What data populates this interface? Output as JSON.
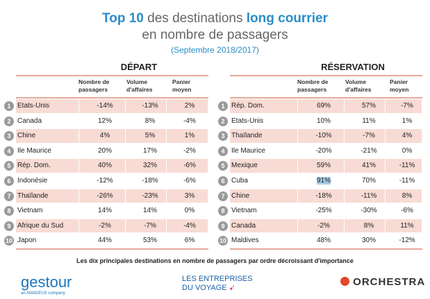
{
  "title": {
    "line1_part1": "Top 10",
    "line1_part2": " des destinations ",
    "line1_part3": "long courrier",
    "line2": "en nombre de passagers",
    "subtitle": "(Septembre 2018/2017)"
  },
  "columns": {
    "passengers": "Nombre de passagers",
    "volume": "Volume d'affaires",
    "basket": "Panier moyen"
  },
  "depart": {
    "title": "DÉPART",
    "rows": [
      {
        "rank": "1",
        "name": "Etats-Unis",
        "passengers": "-14%",
        "volume": "-13%",
        "basket": "2%"
      },
      {
        "rank": "2",
        "name": "Canada",
        "passengers": "12%",
        "volume": "8%",
        "basket": "-4%"
      },
      {
        "rank": "3",
        "name": "Chine",
        "passengers": "4%",
        "volume": "5%",
        "basket": "1%"
      },
      {
        "rank": "4",
        "name": "Ile Maurice",
        "passengers": "20%",
        "volume": "17%",
        "basket": "-2%"
      },
      {
        "rank": "5",
        "name": "Rép. Dom.",
        "passengers": "40%",
        "volume": "32%",
        "basket": "-6%"
      },
      {
        "rank": "6",
        "name": "Indonésie",
        "passengers": "-12%",
        "volume": "-18%",
        "basket": "-6%"
      },
      {
        "rank": "7",
        "name": "Thaïlande",
        "passengers": "-26%",
        "volume": "-23%",
        "basket": "3%"
      },
      {
        "rank": "8",
        "name": "Vietnam",
        "passengers": "14%",
        "volume": "14%",
        "basket": "0%"
      },
      {
        "rank": "9",
        "name": "Afrique du Sud",
        "passengers": "-2%",
        "volume": "-7%",
        "basket": "-4%"
      },
      {
        "rank": "10",
        "name": "Japon",
        "passengers": "44%",
        "volume": "53%",
        "basket": "6%"
      }
    ]
  },
  "reservation": {
    "title": "RÉSERVATION",
    "rows": [
      {
        "rank": "1",
        "name": "Rép. Dom.",
        "passengers": "69%",
        "volume": "57%",
        "basket": "-7%"
      },
      {
        "rank": "2",
        "name": "Etats-Unis",
        "passengers": "10%",
        "volume": "11%",
        "basket": "1%"
      },
      {
        "rank": "3",
        "name": "Thaïlande",
        "passengers": "-10%",
        "volume": "-7%",
        "basket": "4%"
      },
      {
        "rank": "4",
        "name": "Ile Maurice",
        "passengers": "-20%",
        "volume": "-21%",
        "basket": "0%"
      },
      {
        "rank": "5",
        "name": "Mexique",
        "passengers": "59%",
        "volume": "41%",
        "basket": "-11%"
      },
      {
        "rank": "6",
        "name": "Cuba",
        "passengers": "91%",
        "volume": "70%",
        "basket": "-11%"
      },
      {
        "rank": "7",
        "name": "Chine",
        "passengers": "-18%",
        "volume": "-11%",
        "basket": "8%"
      },
      {
        "rank": "8",
        "name": "Vietnam",
        "passengers": "-25%",
        "volume": "-30%",
        "basket": "-6%"
      },
      {
        "rank": "9",
        "name": "Canada",
        "passengers": "-2%",
        "volume": "8%",
        "basket": "11%"
      },
      {
        "rank": "10",
        "name": "Maldives",
        "passengers": "48%",
        "volume": "30%",
        "basket": "-12%"
      }
    ]
  },
  "caption": "Les dix principales destinations en nombre de passagers par ordre décroissant d'importance",
  "logos": {
    "gestour": "gestour",
    "gestour_sub": "an AMADEUS company",
    "edv_line1": "LES ENTREPRISES",
    "edv_line2": "DU VOYAGE",
    "orchestra": "ORCHESTRA"
  },
  "colors": {
    "accent": "#2a8dc8",
    "row_highlight": "#f8dbd5",
    "rule": "#e8a898",
    "orchestra": "#e0492a"
  }
}
